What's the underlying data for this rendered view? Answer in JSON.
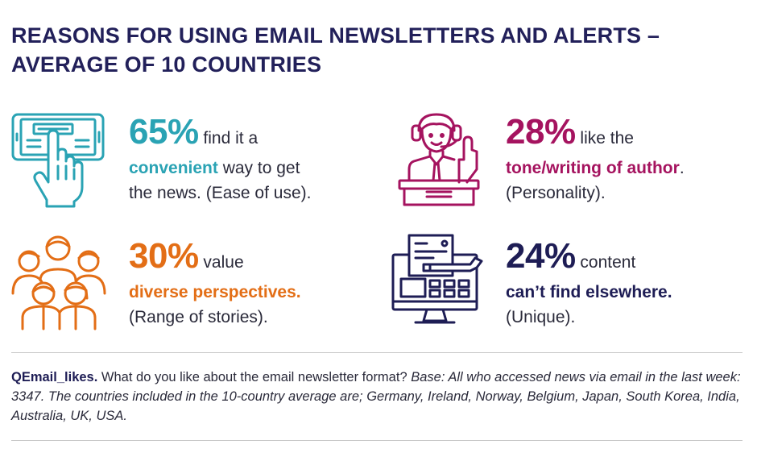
{
  "title": {
    "line1": "REASONS FOR USING EMAIL NEWSLETTERS AND ALERTS –",
    "line2": "AVERAGE OF 10 COUNTRIES"
  },
  "colors": {
    "teal": "#2aa3b4",
    "magenta": "#a5135f",
    "orange": "#e36e16",
    "navy": "#1e1d55"
  },
  "stats": {
    "convenience": {
      "icon": "tablet-touch-icon",
      "percent": "65%",
      "text_after_percent": "find it a",
      "keyword": "convenient",
      "text_after_keyword": "way to get",
      "line3": "the news. (Ease of use)."
    },
    "author": {
      "icon": "speaker-at-podium-icon",
      "percent": "28%",
      "text_after_percent": "like the",
      "keyword": "tone/writing of author",
      "text_after_keyword": ".",
      "line3": "(Personality)."
    },
    "perspectives": {
      "icon": "people-group-icon",
      "percent": "30%",
      "text_after_percent": "value",
      "keyword": "diverse perspectives.",
      "line3": "(Range of stories)."
    },
    "content": {
      "icon": "computer-writing-icon",
      "percent": "24%",
      "text_after_percent": "content",
      "keyword": "can’t find elsewhere.",
      "line3": "(Unique)."
    }
  },
  "footnote": {
    "label": "QEmail_likes.",
    "question": "What do you like about the email newsletter format?",
    "base": "Base: All who accessed news via email in the last week: 3347. The countries included in the 10-country average are; Germany, Ireland, Norway, Belgium, Japan, South Korea, India, Australia, UK, USA."
  }
}
